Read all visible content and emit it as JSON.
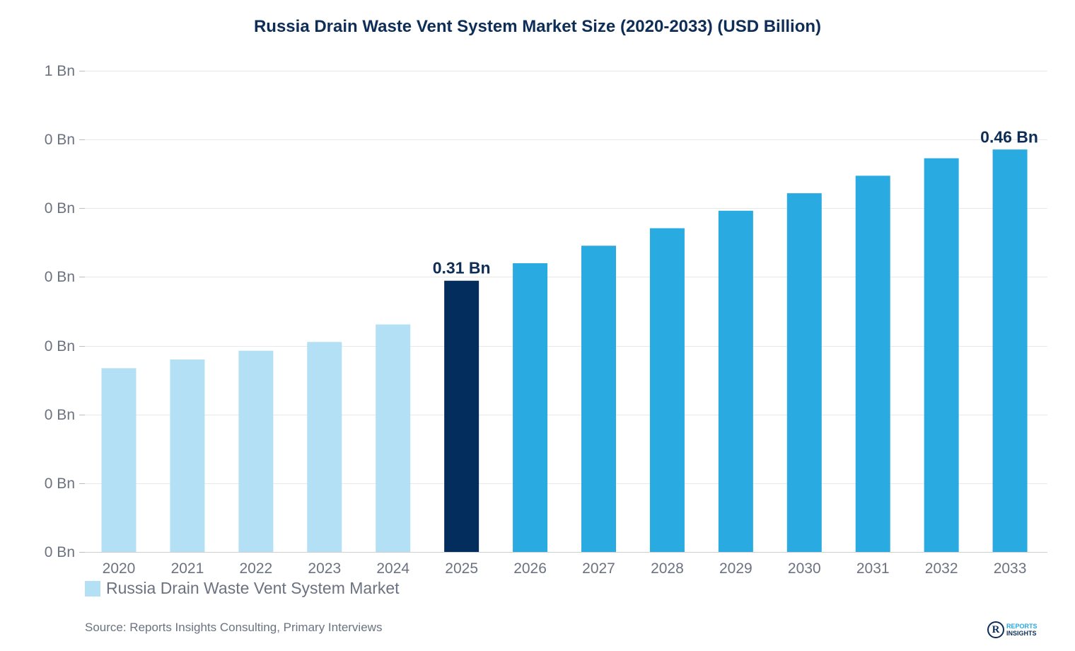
{
  "chart_data": {
    "type": "bar",
    "title": "Russia Drain Waste Vent System Market Size (2020-2033) (USD Billion)",
    "xlabel": "",
    "ylabel": "",
    "categories": [
      "2020",
      "2021",
      "2022",
      "2023",
      "2024",
      "2025",
      "2026",
      "2027",
      "2028",
      "2029",
      "2030",
      "2031",
      "2032",
      "2033"
    ],
    "series": [
      {
        "name": "Russia Drain Waste Vent System Market",
        "values": [
          0.21,
          0.22,
          0.23,
          0.24,
          0.26,
          0.31,
          0.33,
          0.35,
          0.37,
          0.39,
          0.41,
          0.43,
          0.45,
          0.46
        ]
      }
    ],
    "ylim": [
      0,
      0.55
    ],
    "y_ticks": [
      0,
      0.0786,
      0.1571,
      0.2357,
      0.3143,
      0.3929,
      0.4714,
      0.55
    ],
    "y_tick_labels": [
      "0 Bn",
      "0 Bn",
      "0 Bn",
      "0 Bn",
      "0 Bn",
      "0 Bn",
      "0 Bn",
      "1 Bn"
    ],
    "data_labels": [
      {
        "category": "2025",
        "text": "0.31 Bn"
      },
      {
        "category": "2033",
        "text": "0.46 Bn"
      }
    ],
    "bar_colors": {
      "historical": "#b3e0f5",
      "current": "#022d5c",
      "forecast": "#29aae1"
    },
    "historical_categories": [
      "2020",
      "2021",
      "2022",
      "2023",
      "2024"
    ],
    "current_category": "2025",
    "grid": true,
    "legend": {
      "position": "bottom-left",
      "label": "Russia Drain Waste Vent System Market",
      "color": "#b3e0f5"
    }
  },
  "footer": {
    "source": "Source: Reports Insights Consulting, Primary Interviews",
    "brand_line1": "REPORTS",
    "brand_line2": "INSIGHTS",
    "brand_letter": "R"
  }
}
